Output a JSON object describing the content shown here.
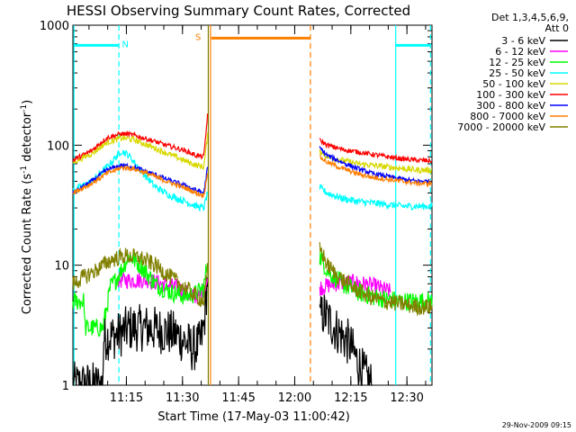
{
  "chart_data": {
    "type": "line",
    "title": "HESSI Observing Summary Count Rates, Corrected",
    "xlabel": "Start Time (17-May-03 11:00:42)",
    "ylabel": "Corrected Count Rate (s⁻¹ detector⁻¹)",
    "ylabel_parts": [
      "Corrected Count Rate (s",
      "-1",
      " detector",
      "-1",
      ")"
    ],
    "yscale": "log",
    "ylim": [
      1,
      1000
    ],
    "xlim": [
      0,
      96
    ],
    "x_units": "minutes after 11:00:42",
    "yticks": [
      1,
      10,
      100,
      1000
    ],
    "ytick_labels": [
      "1",
      "10",
      "100",
      "1000"
    ],
    "xticks": [
      14.3,
      29.3,
      44.3,
      59.3,
      74.3,
      89.3
    ],
    "xtick_labels": [
      "11:15",
      "11:30",
      "11:45",
      "12:00",
      "12:15",
      "12:30"
    ],
    "legend": {
      "placement": "right",
      "header": [
        "Det 1,3,4,5,6,9,",
        "Att 0"
      ],
      "entries": [
        {
          "label": "3 - 6 keV",
          "color": "#000000"
        },
        {
          "label": "6 - 12 keV",
          "color": "#ff00ff"
        },
        {
          "label": "12 - 25 keV",
          "color": "#00ff00"
        },
        {
          "label": "25 - 50 keV",
          "color": "#00ffff"
        },
        {
          "label": "50 - 100 keV",
          "color": "#d8d800"
        },
        {
          "label": "100 - 300 keV",
          "color": "#ff0000"
        },
        {
          "label": "300 - 800 keV",
          "color": "#0000ff"
        },
        {
          "label": "800 - 7000 keV",
          "color": "#ff7f00"
        },
        {
          "label": "7000 - 20000 keV",
          "color": "#808000"
        }
      ]
    },
    "segments": [
      [
        0,
        36
      ],
      [
        66,
        96
      ]
    ],
    "series": [
      {
        "name": "3 - 6 keV",
        "color": "#000000",
        "noise": 0.2,
        "x": [
          0,
          8,
          8.2,
          12,
          15,
          20,
          25,
          28,
          30,
          32,
          34,
          35,
          36,
          66,
          67,
          70,
          74,
          76,
          78,
          80
        ],
        "y": [
          1,
          1,
          2.5,
          2.6,
          3.0,
          3.0,
          2.8,
          2.6,
          2.3,
          2.0,
          2.2,
          3.0,
          8,
          3.5,
          4.0,
          3.0,
          2.2,
          1.6,
          1.2,
          1
        ]
      },
      {
        "name": "6 - 12 keV",
        "color": "#ff00ff",
        "noise": 0.07,
        "x": [
          12,
          20,
          28,
          32,
          34,
          35.5,
          66,
          70,
          75,
          80,
          85
        ],
        "y": [
          7.5,
          7.5,
          6.5,
          5.5,
          5.5,
          7,
          6.5,
          7.0,
          7.2,
          6.8,
          6.0
        ]
      },
      {
        "name": "12 - 25 keV",
        "color": "#00ff00",
        "noise": 0.08,
        "x": [
          0,
          3,
          3.2,
          8,
          10,
          12,
          15,
          18,
          22,
          26,
          30,
          33,
          35,
          36,
          66,
          68,
          72,
          76,
          80,
          84,
          88,
          92,
          96
        ],
        "y": [
          5,
          5,
          3.0,
          3.0,
          6.5,
          8.0,
          12,
          10,
          7,
          6,
          5.5,
          5.8,
          6.5,
          11,
          12,
          9,
          7,
          6,
          5.5,
          5.2,
          5.0,
          5.0,
          5.0
        ]
      },
      {
        "name": "25 - 50 keV",
        "color": "#00ffff",
        "noise": 0.03,
        "x": [
          0,
          5,
          9,
          13,
          15,
          18,
          22,
          26,
          30,
          33,
          35,
          36,
          66,
          68,
          72,
          76,
          80,
          84,
          88,
          92,
          96
        ],
        "y": [
          42,
          50,
          65,
          90,
          82,
          62,
          45,
          38,
          34,
          31,
          30,
          40,
          44,
          40,
          36,
          34,
          33,
          32,
          31,
          31,
          31
        ]
      },
      {
        "name": "50 - 100 keV",
        "color": "#d8d800",
        "noise": 0.025,
        "x": [
          0,
          5,
          9,
          13,
          16,
          20,
          25,
          30,
          33,
          35,
          36,
          66,
          68,
          72,
          76,
          80,
          84,
          88,
          92,
          96
        ],
        "y": [
          72,
          85,
          105,
          115,
          112,
          100,
          86,
          74,
          68,
          66,
          120,
          90,
          80,
          75,
          70,
          68,
          66,
          64,
          62,
          62
        ]
      },
      {
        "name": "100 - 300 keV",
        "color": "#ff0000",
        "noise": 0.02,
        "x": [
          0,
          5,
          9,
          13,
          16,
          20,
          25,
          30,
          33,
          35,
          36,
          66,
          68,
          72,
          76,
          80,
          84,
          88,
          92,
          96
        ],
        "y": [
          75,
          90,
          115,
          125,
          122,
          112,
          100,
          90,
          82,
          80,
          180,
          110,
          100,
          92,
          88,
          84,
          80,
          77,
          75,
          74
        ]
      },
      {
        "name": "300 - 800 keV",
        "color": "#0000ff",
        "noise": 0.02,
        "x": [
          0,
          5,
          9,
          13,
          16,
          20,
          25,
          30,
          33,
          35,
          36,
          66,
          68,
          72,
          76,
          80,
          84,
          88,
          92,
          96
        ],
        "y": [
          40,
          50,
          62,
          68,
          66,
          60,
          52,
          46,
          42,
          40,
          65,
          95,
          82,
          72,
          64,
          58,
          55,
          52,
          50,
          50
        ]
      },
      {
        "name": "800 - 7000 keV",
        "color": "#ff7f00",
        "noise": 0.02,
        "x": [
          0,
          5,
          9,
          13,
          16,
          20,
          25,
          30,
          33,
          35,
          36,
          66,
          68,
          72,
          76,
          80,
          84,
          88,
          92,
          96
        ],
        "y": [
          40,
          48,
          58,
          65,
          64,
          58,
          50,
          44,
          40,
          38,
          60,
          80,
          72,
          64,
          58,
          54,
          52,
          50,
          48,
          48
        ]
      },
      {
        "name": "7000 - 20000 keV",
        "color": "#808000",
        "noise": 0.07,
        "x": [
          0,
          3,
          6,
          10,
          14,
          18,
          22,
          26,
          30,
          33,
          35,
          36,
          66,
          68,
          71,
          75,
          79,
          83,
          87,
          92,
          96
        ],
        "y": [
          7,
          8,
          9,
          11,
          12,
          11.5,
          10,
          8,
          6.5,
          5.5,
          5.0,
          9,
          14,
          10,
          8,
          6.5,
          5.5,
          5.0,
          4.8,
          4.5,
          4.5
        ]
      }
    ],
    "vlines": [
      {
        "x": 0.3,
        "color": "#00ffff",
        "style": "solid"
      },
      {
        "x": 12.3,
        "color": "#00ffff",
        "style": "dashed"
      },
      {
        "x": 36.8,
        "color": "#ff7f00",
        "style": "solid"
      },
      {
        "x": 36.2,
        "color": "#808000",
        "style": "solid"
      },
      {
        "x": 63.5,
        "color": "#ff7f00",
        "style": "dashed"
      },
      {
        "x": 86.3,
        "color": "#00ffff",
        "style": "solid"
      },
      {
        "x": 95.6,
        "color": "#00ffff",
        "style": "dashed"
      }
    ],
    "hbars": [
      {
        "x0": 0.3,
        "x1": 12.3,
        "y": 680,
        "color": "#00ffff",
        "label": "N",
        "label_x": 14.0
      },
      {
        "x0": 86.3,
        "x1": 95.6,
        "y": 680,
        "color": "#00ffff"
      },
      {
        "x0": 37.0,
        "x1": 63.5,
        "y": 780,
        "color": "#ff7f00",
        "label": "S",
        "label_x": 33.5
      }
    ]
  },
  "footer": {
    "timestamp": "29-Nov-2009 09:15"
  }
}
